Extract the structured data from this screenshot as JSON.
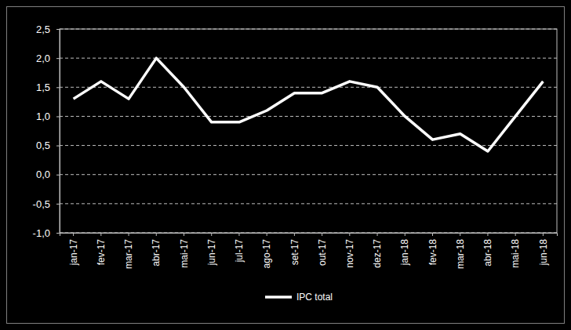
{
  "chart_data": {
    "type": "line",
    "categories": [
      "jan-17",
      "fev-17",
      "mar-17",
      "abr-17",
      "mai-17",
      "jun-17",
      "jul-17",
      "ago-17",
      "set-17",
      "out-17",
      "nov-17",
      "dez-17",
      "jan-18",
      "fev-18",
      "mar-18",
      "abr-18",
      "mai-18",
      "jun-18"
    ],
    "series": [
      {
        "name": "IPC total",
        "color": "#ffffff",
        "values": [
          1.3,
          1.6,
          1.3,
          2.0,
          1.5,
          0.9,
          0.9,
          1.1,
          1.4,
          1.4,
          1.6,
          1.5,
          1.0,
          0.6,
          0.7,
          0.4,
          1.0,
          1.6
        ]
      }
    ],
    "ylim": [
      -1.0,
      2.5
    ],
    "yticks": [
      {
        "value": -1.0,
        "label": "-1,0"
      },
      {
        "value": -0.5,
        "label": "-0,5"
      },
      {
        "value": 0,
        "label": "0,0"
      },
      {
        "value": 0.5,
        "label": "0,5"
      },
      {
        "value": 1.0,
        "label": "1,0"
      },
      {
        "value": 1.5,
        "label": "1,5"
      },
      {
        "value": 2.0,
        "label": "2,0"
      },
      {
        "value": 2.5,
        "label": "2,5"
      }
    ],
    "grid": true,
    "legend": "bottom"
  }
}
